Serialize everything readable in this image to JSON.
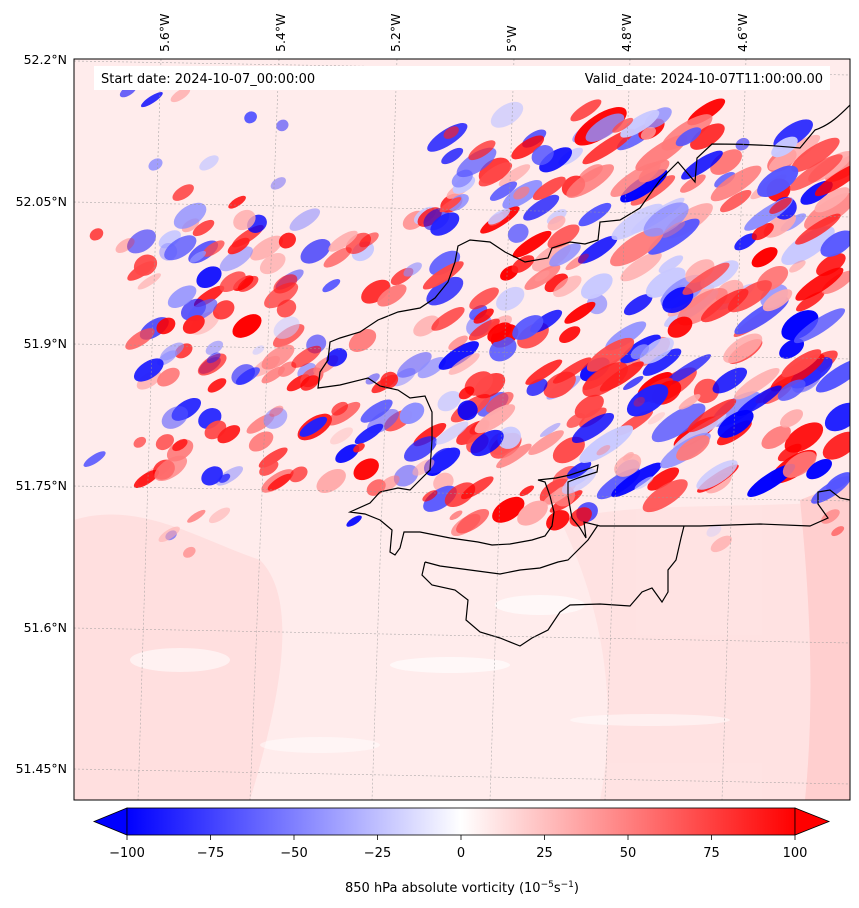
{
  "header": {
    "start_date": "Start date: 2024-10-07_00:00:00",
    "valid_date": "Valid_date: 2024-10-07T11:00:00.00"
  },
  "axes": {
    "lon_labels": [
      "5.6°W",
      "5.4°W",
      "5.2°W",
      "5°W",
      "4.8°W",
      "4.6°W"
    ],
    "lat_labels": [
      "52.2°N",
      "52.05°N",
      "51.9°N",
      "51.75°N",
      "51.6°N",
      "51.45°N"
    ]
  },
  "colorbar": {
    "ticks": [
      "−100",
      "−75",
      "−50",
      "−25",
      "0",
      "25",
      "50",
      "75",
      "100"
    ],
    "label": "850 hPa absolute vorticity (10",
    "label_exp1": "−5",
    "label_mid": "s",
    "label_exp2": "−1",
    "label_end": ")",
    "min": -100,
    "max": 100,
    "colors": {
      "negative": "#0000ff",
      "zero": "#ffffff",
      "positive": "#ff0000",
      "background": "#ffecec"
    }
  },
  "map_features": {
    "coastline_color": "#000000",
    "gridline_style": "dashed-gray"
  }
}
